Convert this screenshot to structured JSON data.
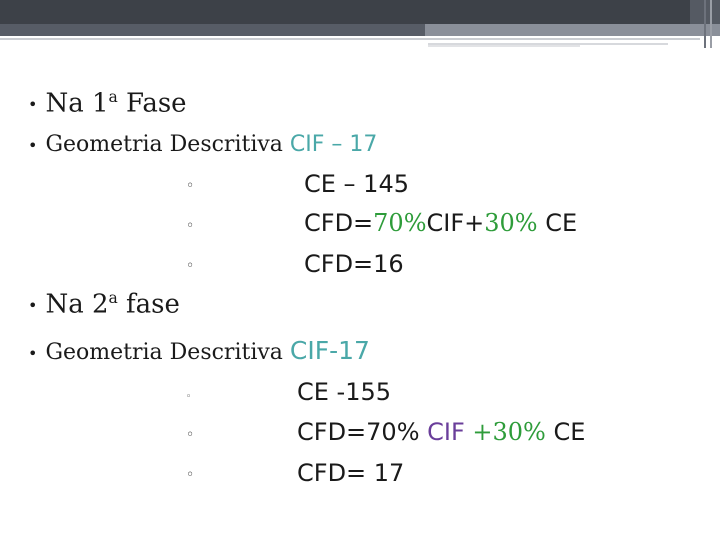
{
  "slide": {
    "line1": {
      "bullet": "•",
      "text": "Na 1",
      "sup": "a",
      "tail": " Fase"
    },
    "line2": {
      "bullet": "•",
      "text": "Geometria Descritiva ",
      "cif": "CIF – 17"
    },
    "line3": {
      "marker": "◦",
      "text": "CE – 145"
    },
    "line4": {
      "marker": "◦",
      "pre": "CFD=",
      "pct1": "70%",
      "mid": "CIF+",
      "pct2": "30%",
      "post": " CE"
    },
    "line5": {
      "marker": "◦",
      "text": "CFD=16"
    },
    "line6": {
      "bullet": "•",
      "text": "Na 2",
      "sup": "a",
      "tail": " fase"
    },
    "line7": {
      "bullet": "•",
      "text": "Geometria Descritiva ",
      "cif": "CIF-17"
    },
    "line8": {
      "marker": "◦",
      "text": "CE -155"
    },
    "line9": {
      "marker": "◦",
      "pre": "CFD=70% ",
      "cif": "CIF ",
      "pct": "+30%",
      "post": " CE"
    },
    "line10": {
      "marker": "◦",
      "text": "CFD= 17"
    }
  },
  "colors": {
    "teal": "#4aa8a8",
    "green": "#2e9c3a",
    "purple": "#6a3e9a",
    "header": "#3d4148"
  }
}
